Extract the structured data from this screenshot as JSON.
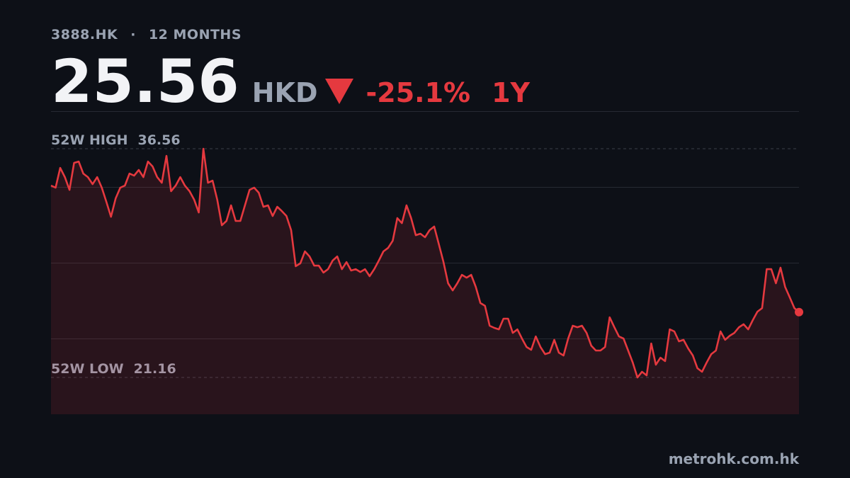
{
  "header": {
    "ticker": "3888.HK",
    "separator": "·",
    "period": "12 MONTHS",
    "price": "25.56",
    "currency": "HKD",
    "change": "-25.1%",
    "range": "1Y"
  },
  "chart_data": {
    "type": "line",
    "series": [
      {
        "color": "#e5393f",
        "values": [
          34.08,
          33.94,
          35.27,
          34.65,
          33.79,
          35.61,
          35.7,
          34.89,
          34.65,
          34.18,
          34.65,
          33.94,
          32.98,
          31.98,
          33.22,
          33.94,
          34.08,
          34.89,
          34.75,
          35.13,
          34.65,
          35.7,
          35.37,
          34.65,
          34.27,
          36.08,
          33.7,
          34.08,
          34.65,
          34.08,
          33.7,
          33.13,
          32.27,
          36.56,
          34.27,
          34.41,
          33.13,
          31.41,
          31.7,
          32.75,
          31.7,
          31.7,
          32.75,
          33.79,
          33.94,
          33.6,
          32.65,
          32.75,
          32.03,
          32.65,
          32.36,
          32.03,
          31.08,
          28.65,
          28.84,
          29.65,
          29.31,
          28.69,
          28.69,
          28.22,
          28.45,
          29.03,
          29.31,
          28.45,
          28.93,
          28.36,
          28.45,
          28.26,
          28.45,
          27.98,
          28.45,
          29.03,
          29.65,
          29.88,
          30.36,
          31.89,
          31.55,
          32.75,
          31.89,
          30.74,
          30.84,
          30.6,
          31.08,
          31.32,
          30.12,
          28.93,
          27.5,
          27.02,
          27.5,
          28.07,
          27.88,
          28.07,
          27.26,
          26.17,
          25.98,
          24.64,
          24.5,
          24.4,
          25.12,
          25.12,
          24.16,
          24.4,
          23.78,
          23.21,
          23.02,
          23.92,
          23.21,
          22.73,
          22.83,
          23.69,
          22.83,
          22.64,
          23.78,
          24.64,
          24.54,
          24.64,
          24.16,
          23.3,
          22.97,
          22.97,
          23.21,
          25.21,
          24.54,
          23.92,
          23.78,
          22.97,
          22.16,
          21.16,
          21.54,
          21.3,
          23.45,
          22.02,
          22.49,
          22.26,
          24.4,
          24.26,
          23.59,
          23.69,
          23.11,
          22.64,
          21.78,
          21.54,
          22.16,
          22.73,
          22.97,
          24.26,
          23.69,
          23.97,
          24.16,
          24.54,
          24.74,
          24.4,
          25.02,
          25.59,
          25.83,
          28.45,
          28.45,
          27.5,
          28.55,
          27.26,
          26.55,
          25.83,
          25.56
        ]
      }
    ],
    "ylim": [
      18.68,
      39.09
    ],
    "high": {
      "label": "52W HIGH",
      "value": 36.56
    },
    "low": {
      "label": "52W LOW",
      "value": 21.16
    }
  },
  "footer": {
    "site": "metrohk.com.hk"
  }
}
